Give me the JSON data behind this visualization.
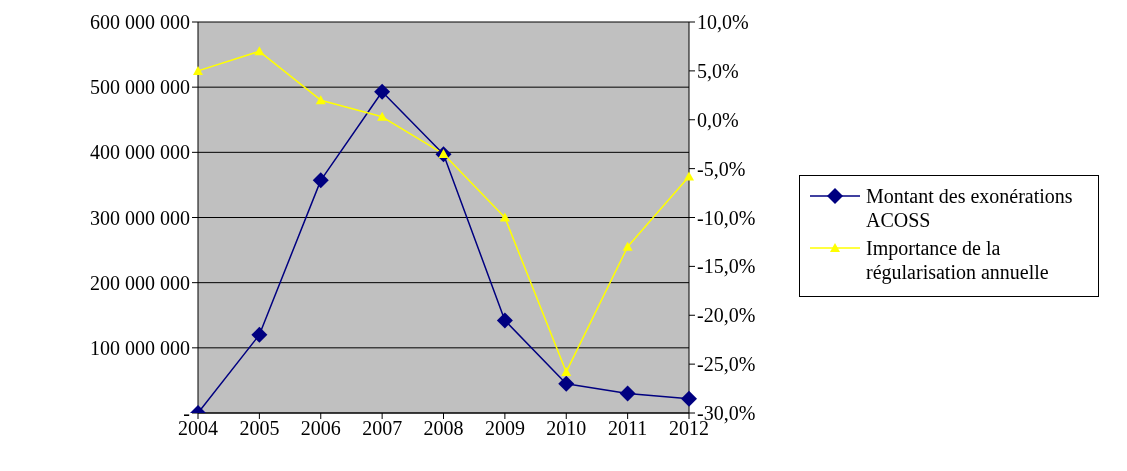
{
  "chart_data": {
    "type": "line",
    "categories": [
      "2004",
      "2005",
      "2006",
      "2007",
      "2008",
      "2009",
      "2010",
      "2011",
      "2012"
    ],
    "series": [
      {
        "name": "Montant des exonérations ACOSS",
        "color": "#000080",
        "marker": "diamond",
        "axis": "y",
        "values": [
          0,
          120000000,
          357000000,
          493000000,
          397000000,
          142000000,
          45000000,
          30000000,
          22000000
        ]
      },
      {
        "name": "Importance de la régularisation annuelle",
        "color": "#ffff00",
        "marker": "triangle",
        "axis": "y2",
        "values": [
          5.0,
          7.0,
          2.0,
          0.3,
          -3.5,
          -10.0,
          -25.8,
          -13.0,
          -5.8
        ]
      }
    ],
    "ylim": [
      0,
      600000000
    ],
    "yticks": [
      {
        "value": 0,
        "label": "-"
      },
      {
        "value": 100000000,
        "label": "100 000 000"
      },
      {
        "value": 200000000,
        "label": "200 000 000"
      },
      {
        "value": 300000000,
        "label": "300 000 000"
      },
      {
        "value": 400000000,
        "label": "400 000 000"
      },
      {
        "value": 500000000,
        "label": "500 000 000"
      },
      {
        "value": 600000000,
        "label": "600 000 000"
      }
    ],
    "y2lim": [
      -30,
      10
    ],
    "y2ticks": [
      {
        "value": -30,
        "label": "-30,0%"
      },
      {
        "value": -25,
        "label": "-25,0%"
      },
      {
        "value": -20,
        "label": "-20,0%"
      },
      {
        "value": -15,
        "label": "-15,0%"
      },
      {
        "value": -10,
        "label": "-10,0%"
      },
      {
        "value": -5,
        "label": "-5,0%"
      },
      {
        "value": 0,
        "label": "0,0%"
      },
      {
        "value": 5,
        "label": "5,0%"
      },
      {
        "value": 10,
        "label": "10,0%"
      }
    ],
    "grid": "y",
    "legend": "right",
    "line_style": "solid"
  }
}
